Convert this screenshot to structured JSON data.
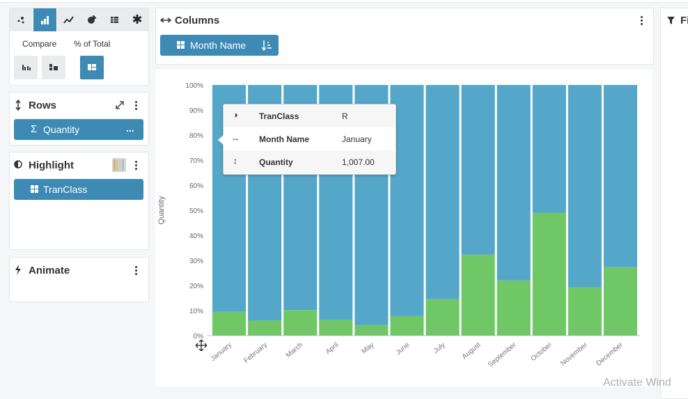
{
  "toolbar": {
    "chart_types": [
      "scatter-icon",
      "bar-chart-icon",
      "line-chart-icon",
      "pie-chart-icon",
      "table-icon",
      "star-icon"
    ],
    "selected": "bar-chart-icon",
    "compare_label": "Compare",
    "percent_label": "% of Total"
  },
  "rows_panel": {
    "title": "Rows",
    "pill_label": "Quantity",
    "pill_prefix": "Σ",
    "pill_more": "..."
  },
  "highlight_panel": {
    "title": "Highlight",
    "pill_label": "TranClass"
  },
  "animate_panel": {
    "title": "Animate"
  },
  "columns_panel": {
    "title": "Columns",
    "pill_label": "Month Name"
  },
  "filters_panel": {
    "title": "Fi"
  },
  "tooltip": {
    "rows": [
      {
        "key": "TranClass",
        "value": "R"
      },
      {
        "key": "Month Name",
        "value": "January"
      },
      {
        "key": "Quantity",
        "value": "1,007.00"
      }
    ]
  },
  "watermark": "Activate Wind",
  "colors": {
    "accent": "#3d8ab5",
    "blue_series": "#55a7ca",
    "green_series": "#6fc765"
  },
  "chart_data": {
    "type": "bar",
    "stacked": "percent",
    "ylabel": "Quantity",
    "xlabel": "",
    "ylim": [
      0,
      100
    ],
    "y_ticks": [
      "0%",
      "10%",
      "20%",
      "30%",
      "40%",
      "50%",
      "60%",
      "70%",
      "80%",
      "90%",
      "100%"
    ],
    "categories": [
      "January",
      "February",
      "March",
      "April",
      "May",
      "June",
      "July",
      "August",
      "September",
      "October",
      "November",
      "December"
    ],
    "series": [
      {
        "color": "#6fc765",
        "values": [
          9.5,
          6,
          10.2,
          6.4,
          4.2,
          7.8,
          14.5,
          32.3,
          22,
          49,
          19.3,
          27.3
        ]
      },
      {
        "color": "#55a7ca",
        "values": [
          90.5,
          94,
          89.8,
          93.6,
          95.8,
          92.2,
          85.5,
          67.7,
          78,
          51,
          80.7,
          72.7
        ]
      }
    ]
  }
}
